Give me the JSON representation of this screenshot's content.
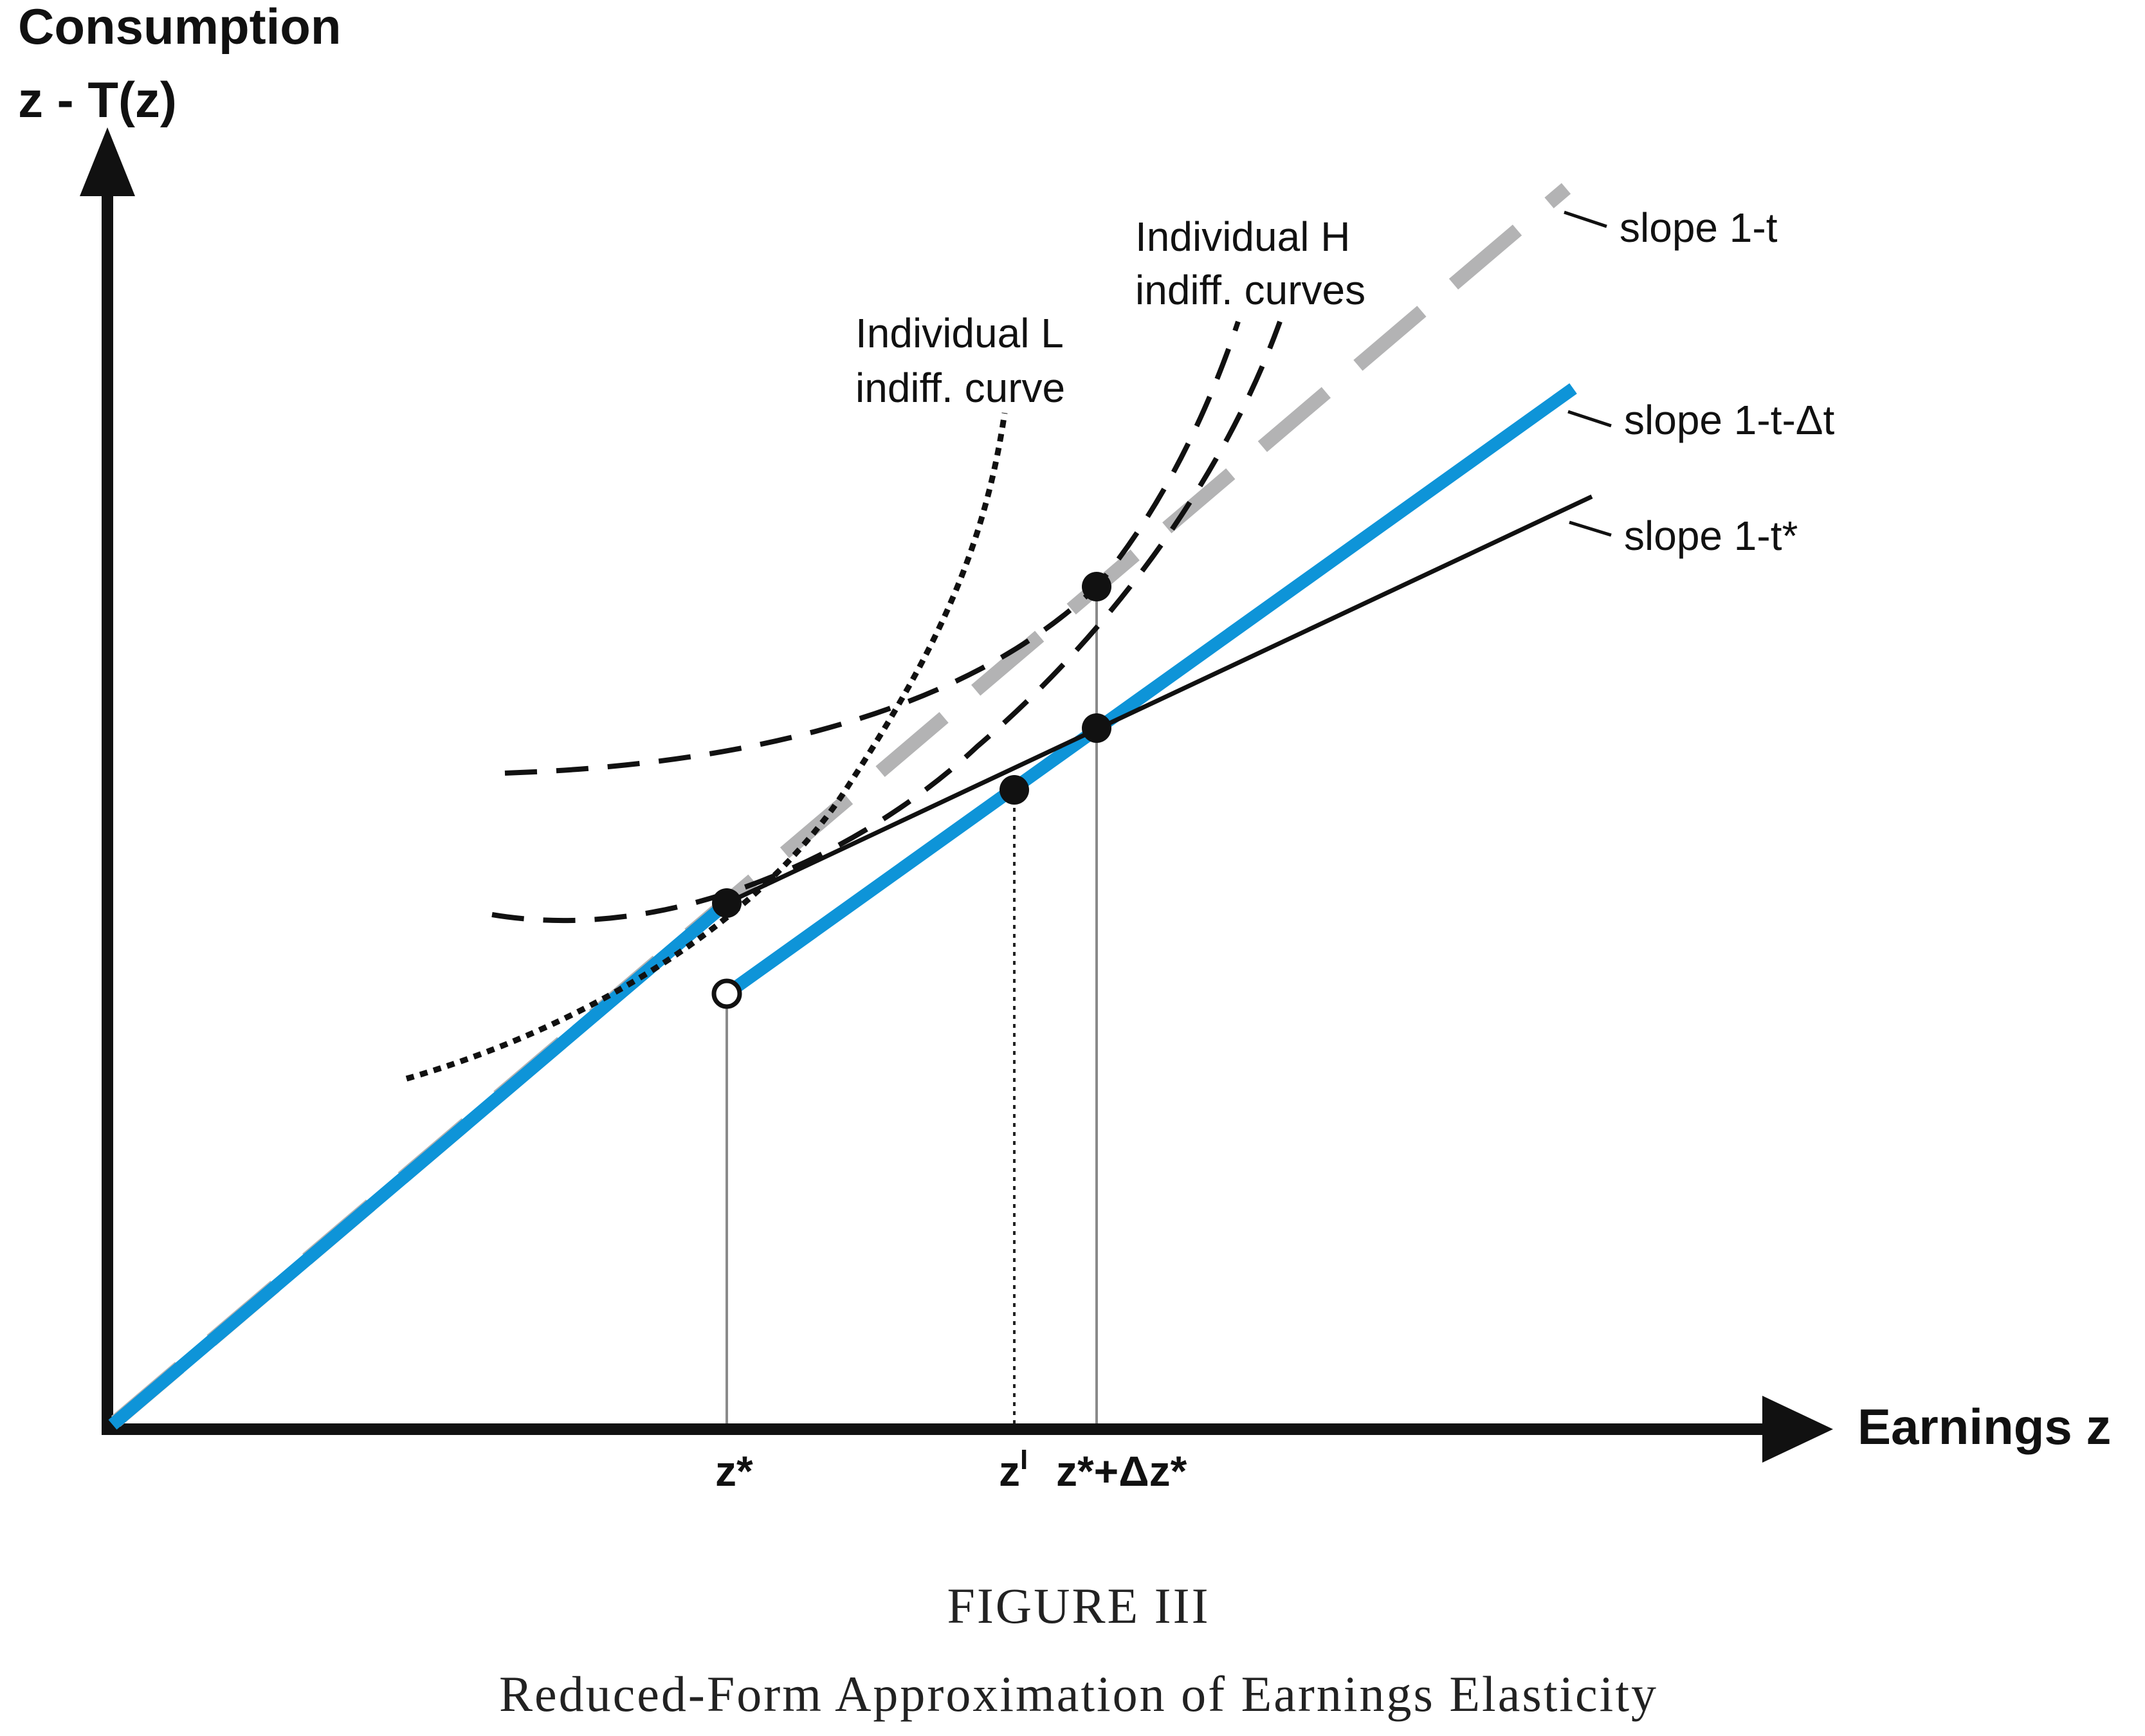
{
  "axes": {
    "y_title_line1": "Consumption",
    "y_title_line2": "z - T(z)",
    "x_title": "Earnings z"
  },
  "ticks": {
    "z_star": "z*",
    "z_i_base": "z",
    "z_i_sup": "I",
    "z_star_dz": "z*+Δz*"
  },
  "labels": {
    "slope_1t": "slope 1-t",
    "slope_1t_dt": "slope 1-t-Δt",
    "slope_1t_star": "slope 1-t*",
    "ind_l_line1": "Individual L",
    "ind_l_line2": "indiff. curve",
    "ind_h_line1": "Individual H",
    "ind_h_line2": "indiff. curves"
  },
  "caption": {
    "figure_word": "FIGURE",
    "figure_number": "III",
    "title": "Reduced-Form Approximation of Earnings Elasticity"
  },
  "colors": {
    "blue_budget": "#0e94d8",
    "gray_budget": "#b3b3b4",
    "black": "#111111"
  }
}
